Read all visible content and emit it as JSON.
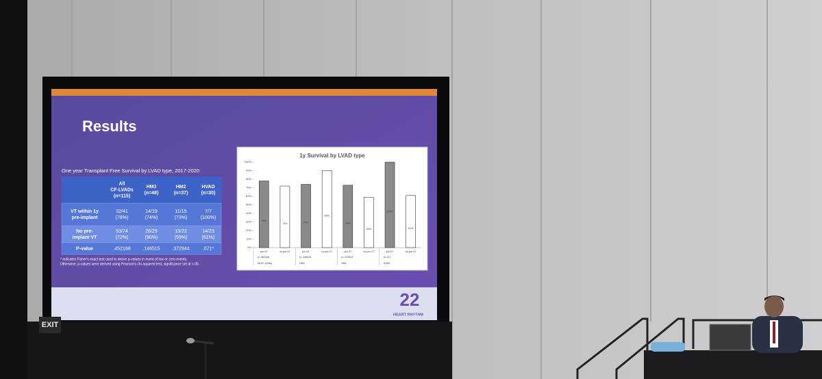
{
  "slide": {
    "title": "Results",
    "table_caption": "One year Transplant Free Survival by LVAD type, 2017-2020",
    "table": {
      "header": [
        [
          "All",
          "CF-LVADs",
          "(n=115)"
        ],
        [
          "HM3",
          "(n=48)"
        ],
        [
          "HM2",
          "(n=37)"
        ],
        [
          "HVAD",
          "(n=30)"
        ]
      ],
      "rows": [
        [
          [
            "VT within 1y",
            "pre-implant"
          ],
          [
            "32/41",
            "(78%)"
          ],
          [
            "14/19",
            "(74%)"
          ],
          [
            "11/15",
            "(73%)"
          ],
          [
            "7/7",
            "(100%)"
          ]
        ],
        [
          [
            "No pre-",
            "implant VT"
          ],
          [
            "53/74",
            "(72%)"
          ],
          [
            "26/29",
            "(90%)"
          ],
          [
            "13/22",
            "(59%)"
          ],
          [
            "14/23",
            "(61%)"
          ]
        ],
        [
          [
            "P-value"
          ],
          [
            ".452168"
          ],
          [
            ".146515"
          ],
          [
            ".372944"
          ],
          [
            ".071*"
          ]
        ]
      ]
    },
    "footnote": [
      "* indicates Fisher's exact test used to derive p-values in event of low or zero events.",
      "Otherwise, p-values were derived using Pearson's chi-squared test, significance set at <.05."
    ],
    "chart": {
      "type": "bar",
      "title": "1y Survival by LVAD type",
      "categories": [
        "pre-VT",
        "no pre-VT",
        "pre-VT",
        "no pre-VT",
        "pre-VT",
        "no pre-VT",
        "pre-VT",
        "no pre-VT"
      ],
      "values": [
        78,
        72,
        74,
        90,
        73,
        59,
        100,
        61
      ],
      "value_labels": [
        "78%",
        "72%",
        "74%",
        "90%",
        "73%",
        "59%",
        "100%",
        "61%"
      ],
      "colors": [
        "#8a8a8a",
        "#ffffff"
      ],
      "p_values": [
        "p=.452168",
        "p=.146515",
        "p=.372944",
        "p=.071"
      ],
      "groups": [
        "All CF-LVADs",
        "HM3",
        "HM2",
        "HVAD"
      ],
      "ylim": [
        0,
        100
      ],
      "yticks": [
        {
          "value": 0,
          "label": "0%"
        },
        {
          "value": 10,
          "label": "10%"
        },
        {
          "value": 20,
          "label": "20%"
        },
        {
          "value": 30,
          "label": "30%"
        },
        {
          "value": 40,
          "label": "40%"
        },
        {
          "value": 50,
          "label": "50%"
        },
        {
          "value": 60,
          "label": "60%"
        },
        {
          "value": 70,
          "label": "70%"
        },
        {
          "value": 80,
          "label": "80%"
        },
        {
          "value": 90,
          "label": "90%"
        },
        {
          "value": 100,
          "label": "100%"
        }
      ]
    },
    "logo": {
      "number": "22",
      "text": "HEART RHYTHM"
    }
  },
  "room": {
    "exit_sign": "EXIT"
  }
}
